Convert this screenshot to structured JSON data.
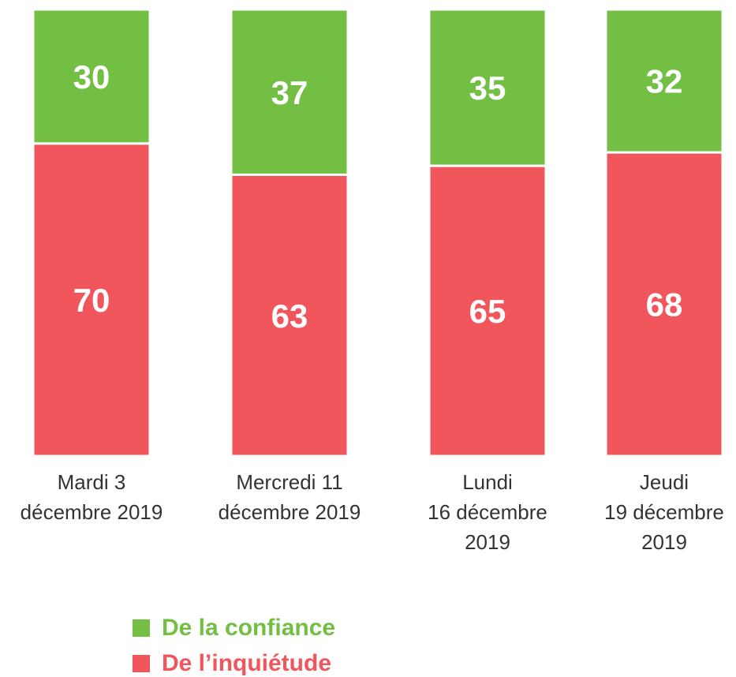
{
  "chart_data": {
    "type": "stacked_bar",
    "categories": [
      "Mardi 3\ndécembre 2019",
      "Mercredi 11\ndécembre 2019",
      "Lundi\n16 décembre\n2019",
      "Jeudi\n19 décembre\n2019"
    ],
    "series": [
      {
        "name": "De la confiance",
        "color": "#72bf44",
        "values": [
          30,
          37,
          35,
          32
        ]
      },
      {
        "name": "De l’inquiétude",
        "color": "#f0565c",
        "values": [
          70,
          63,
          65,
          68
        ]
      }
    ],
    "ylim": [
      0,
      100
    ]
  }
}
